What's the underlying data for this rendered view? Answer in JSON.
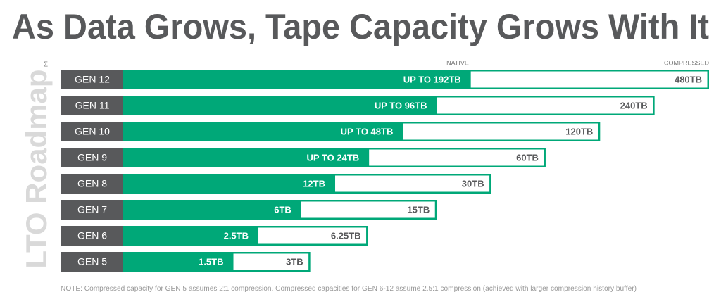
{
  "chart_data": {
    "type": "bar",
    "orientation": "horizontal",
    "title": "As Data Grows, Tape Capacity Grows With It",
    "side_label": "LTO Roadmap",
    "corner_mark": "Σ",
    "categories": [
      "GEN 12",
      "GEN 11",
      "GEN 10",
      "GEN 9",
      "GEN 8",
      "GEN 7",
      "GEN 6",
      "GEN 5"
    ],
    "series": [
      {
        "name": "NATIVE",
        "color": "#00a878",
        "axis": "x",
        "values": [
          192,
          96,
          48,
          24,
          12,
          6,
          2.5,
          1.5
        ],
        "value_labels": [
          "UP TO 192TB",
          "UP TO 96TB",
          "UP TO 48TB",
          "UP TO 24TB",
          "12TB",
          "6TB",
          "2.5TB",
          "1.5TB"
        ]
      },
      {
        "name": "COMPRESSED",
        "color": "#ffffff",
        "axis": "x2",
        "values": [
          480,
          240,
          120,
          60,
          30,
          15,
          6.25,
          3
        ],
        "value_labels": [
          "480TB",
          "240TB",
          "120TB",
          "60TB",
          "30TB",
          "15TB",
          "6.25TB",
          "3TB"
        ]
      }
    ],
    "xlim": [
      0.16,
      25000
    ],
    "x2lim": [
      0.28,
      480
    ],
    "log_scale": true,
    "note": "NOTE: Compressed capacity for GEN 5 assumes 2:1 compression. Compressed capacities for GEN 6-12 assume 2.5:1 compression (achieved with larger compression history buffer)"
  }
}
